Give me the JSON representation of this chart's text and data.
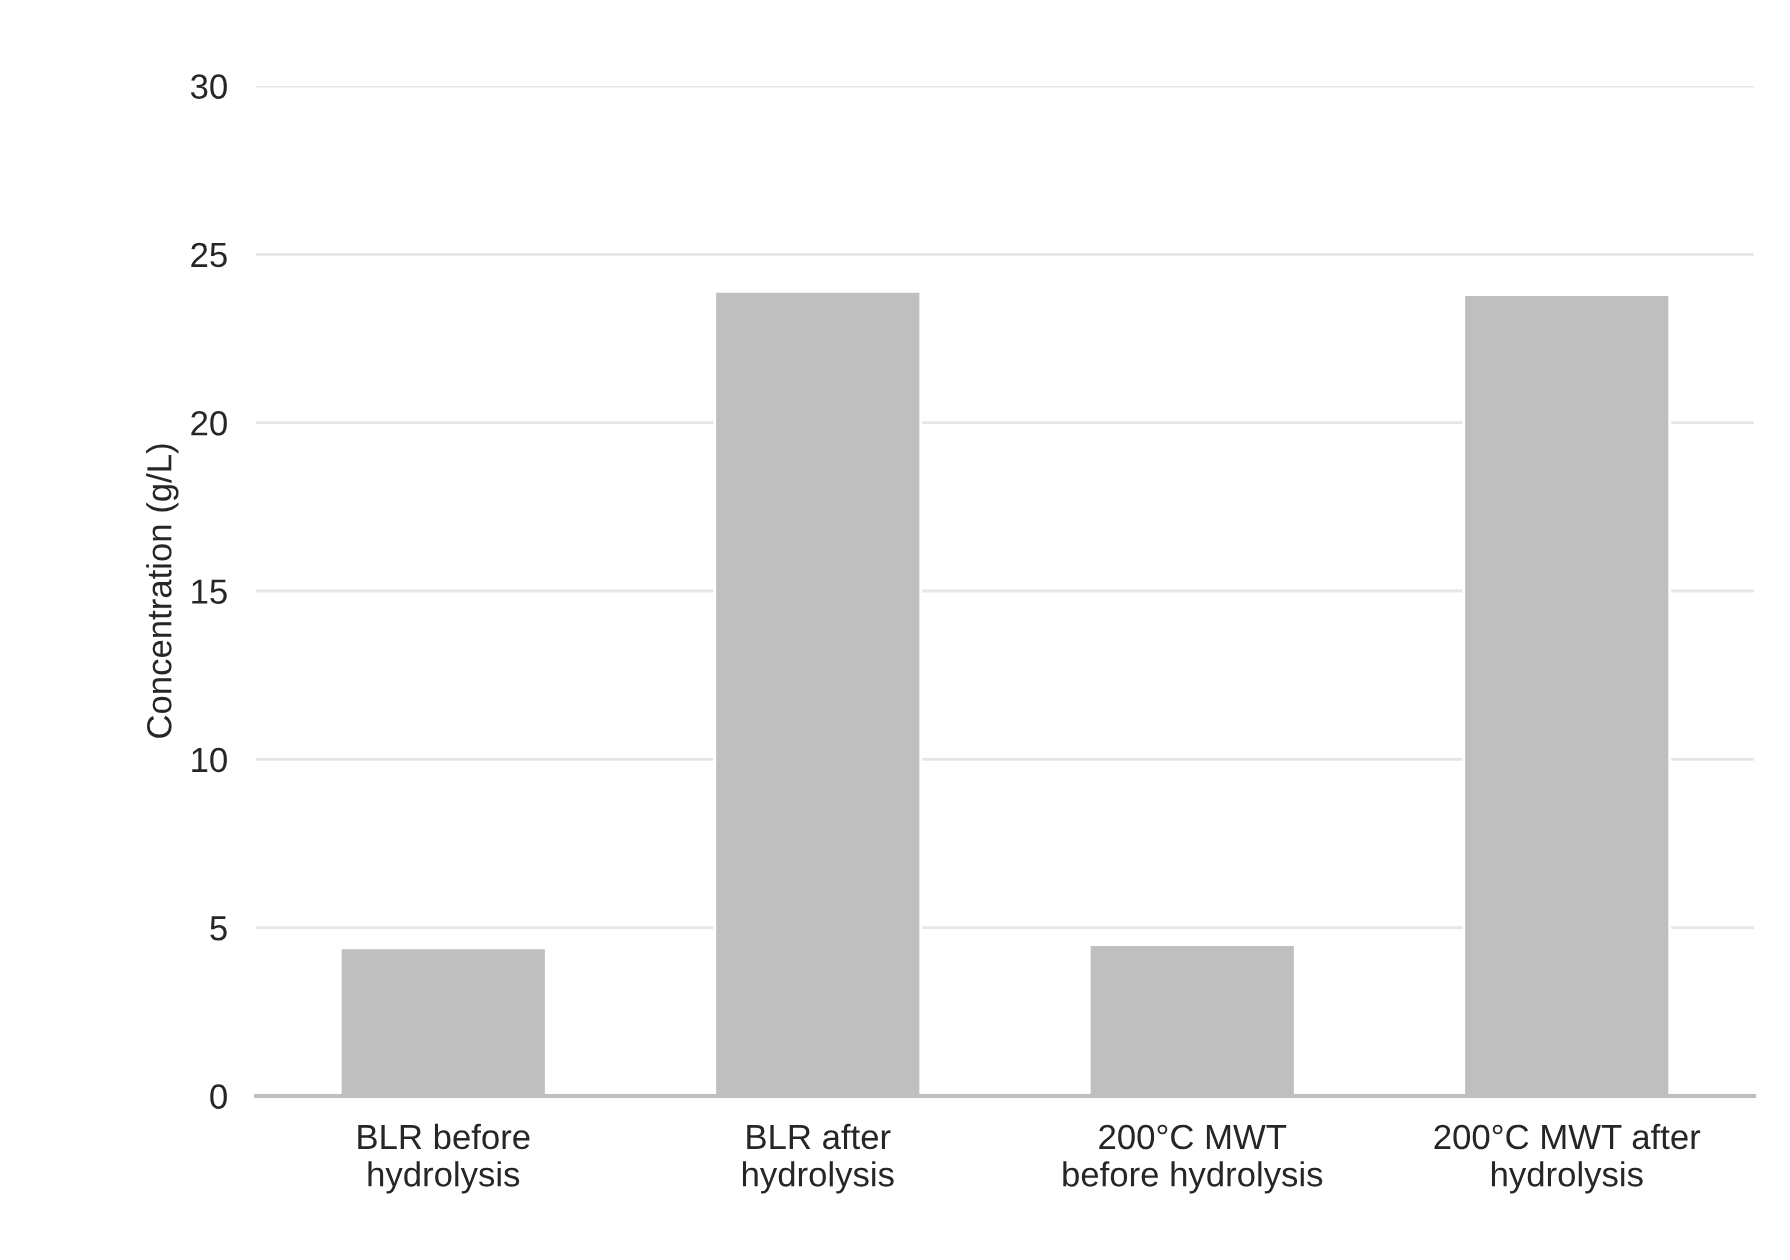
{
  "chart_data": {
    "type": "bar",
    "ylabel": "Concentration (g/L)",
    "categories": [
      "BLR before\nhydrolysis",
      "BLR after\nhydrolysis",
      "200°C MWT\nbefore hydrolysis",
      "200°C MWT after\nhydrolysis"
    ],
    "values": [
      4.4,
      23.9,
      4.5,
      23.8
    ],
    "color": "#bfbfbf",
    "ylim": [
      0,
      30
    ],
    "yticks": [
      0,
      5,
      10,
      15,
      20,
      25,
      30
    ],
    "grid": "y",
    "legend": false
  }
}
